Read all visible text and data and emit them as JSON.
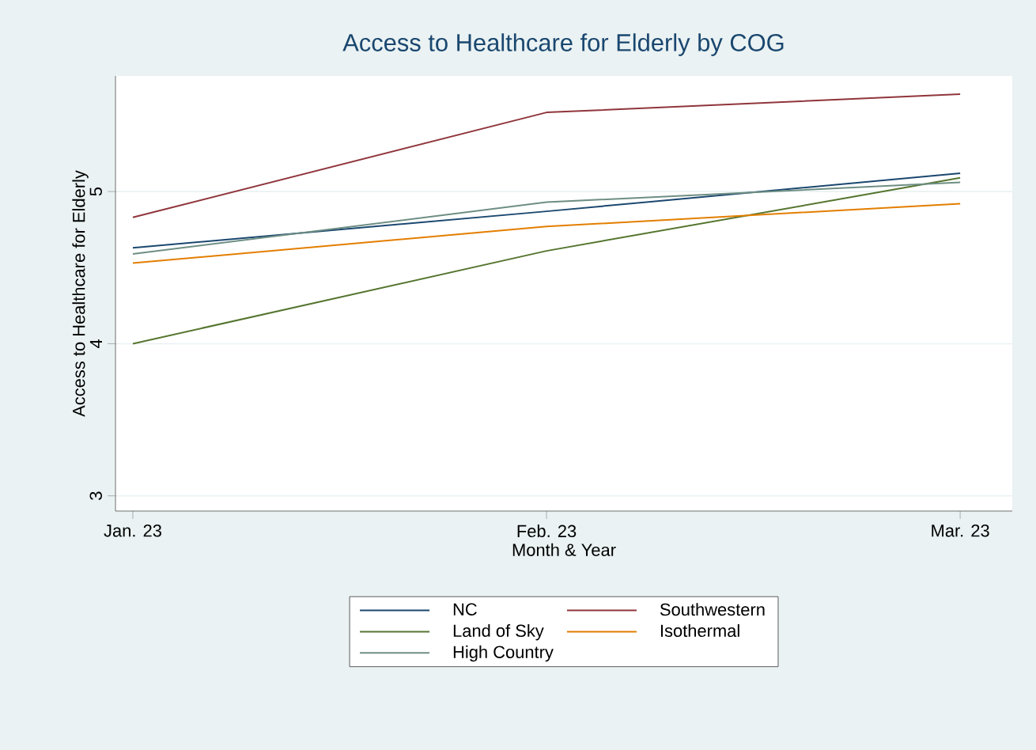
{
  "chart_data": {
    "type": "line",
    "title": "Access to Healthcare for Elderly by COG",
    "xlabel": "Month & Year",
    "ylabel": "Access to Healthcare for Elderly",
    "categories": [
      "Jan. 23",
      "Feb. 23",
      "Mar. 23"
    ],
    "series": [
      {
        "name": "NC",
        "color": "#1a476f",
        "values": [
          4.63,
          4.87,
          5.12
        ]
      },
      {
        "name": "Southwestern",
        "color": "#90353b",
        "values": [
          4.83,
          5.52,
          5.64
        ]
      },
      {
        "name": "Land of Sky",
        "color": "#55752f",
        "values": [
          4.0,
          4.61,
          5.09
        ]
      },
      {
        "name": "Isothermal",
        "color": "#e37e00",
        "values": [
          4.53,
          4.77,
          4.92
        ]
      },
      {
        "name": "High Country",
        "color": "#6e8e84",
        "values": [
          4.59,
          4.93,
          5.06
        ]
      }
    ],
    "ylim": [
      2.9,
      5.76
    ],
    "yticks": [
      3,
      4,
      5
    ],
    "grid": "y",
    "legend": "bottom",
    "marker": "none",
    "line_style": "solid"
  }
}
